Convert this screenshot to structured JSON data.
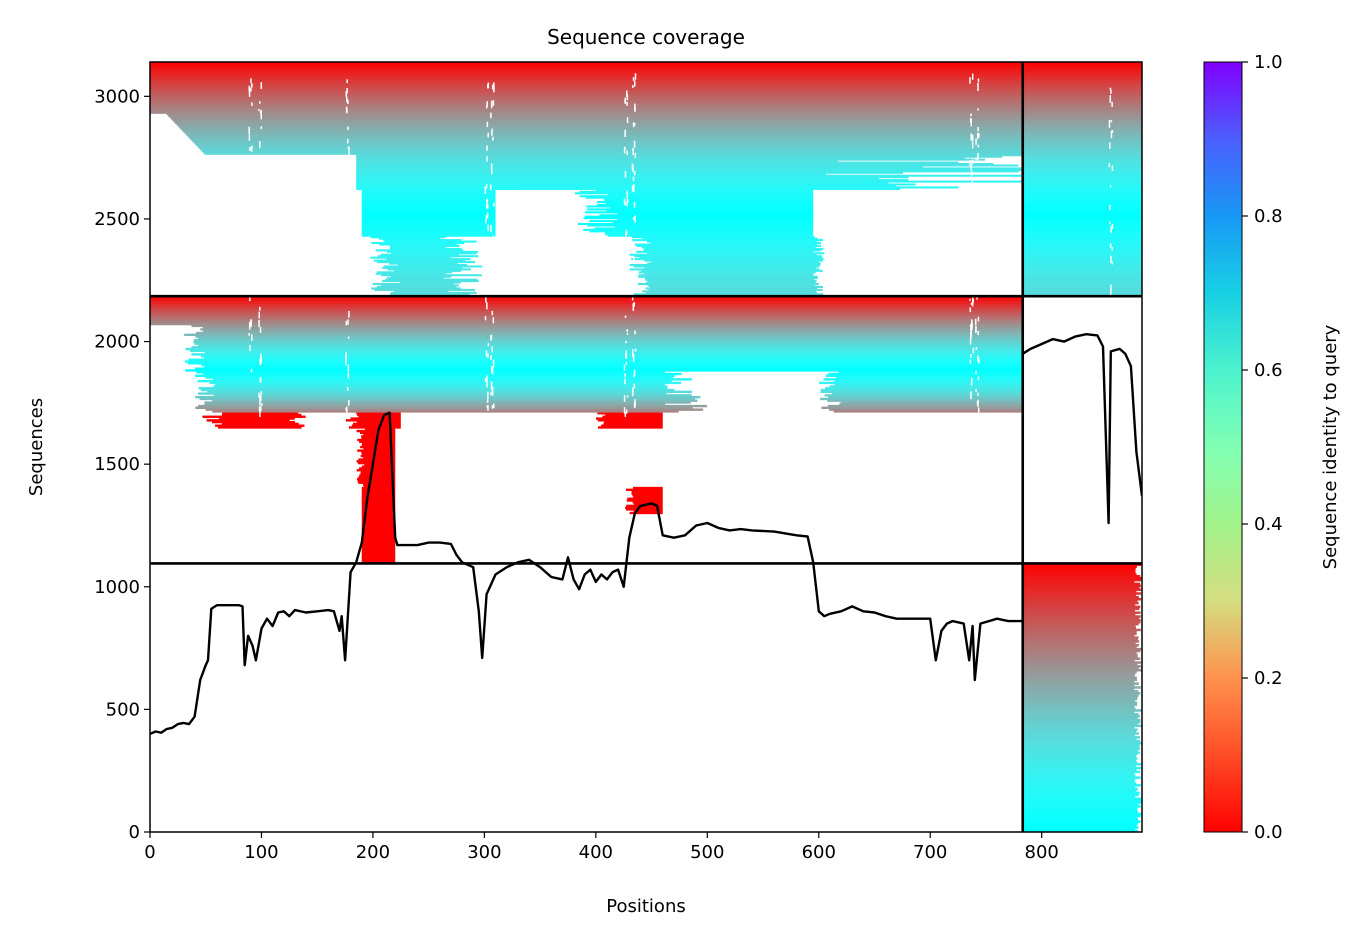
{
  "chart_data": {
    "type": "heatmap",
    "title": "Sequence coverage",
    "xlabel": "Positions",
    "ylabel": "Sequences",
    "xlim": [
      0,
      890
    ],
    "ylim": [
      0,
      3140
    ],
    "x_ticks": [
      0,
      100,
      200,
      300,
      400,
      500,
      600,
      700,
      800
    ],
    "y_ticks": [
      0,
      500,
      1000,
      1500,
      2000,
      2500,
      3000
    ],
    "grid": false,
    "colorbar": {
      "label": "Sequence identity to query",
      "range": [
        0,
        1
      ],
      "ticks": [
        "0.0",
        "0.2",
        "0.4",
        "0.6",
        "0.8",
        "1.0"
      ],
      "colormap": "rainbow"
    },
    "chain_boundaries": {
      "x": [
        783
      ],
      "y": [
        1095,
        2185
      ]
    },
    "blocks": [
      {
        "name": "block-1",
        "x_range": [
          783,
          890
        ],
        "y_range": [
          0,
          1095
        ]
      },
      {
        "name": "block-2",
        "x_range": [
          0,
          783
        ],
        "y_range": [
          1095,
          2185
        ]
      },
      {
        "name": "block-3",
        "x_range": [
          0,
          890
        ],
        "y_range": [
          2185,
          3140
        ]
      }
    ],
    "series": [
      {
        "type": "line",
        "color": "#000000",
        "points": [
          [
            0,
            400
          ],
          [
            5,
            410
          ],
          [
            10,
            405
          ],
          [
            15,
            420
          ],
          [
            20,
            425
          ],
          [
            25,
            440
          ],
          [
            30,
            445
          ],
          [
            35,
            440
          ],
          [
            40,
            470
          ],
          [
            45,
            620
          ],
          [
            50,
            680
          ],
          [
            52,
            700
          ],
          [
            55,
            910
          ],
          [
            60,
            925
          ],
          [
            70,
            925
          ],
          [
            80,
            925
          ],
          [
            83,
            920
          ],
          [
            85,
            680
          ],
          [
            88,
            800
          ],
          [
            92,
            760
          ],
          [
            95,
            700
          ],
          [
            100,
            830
          ],
          [
            105,
            870
          ],
          [
            110,
            840
          ],
          [
            115,
            895
          ],
          [
            120,
            900
          ],
          [
            125,
            880
          ],
          [
            130,
            905
          ],
          [
            140,
            895
          ],
          [
            150,
            900
          ],
          [
            160,
            905
          ],
          [
            165,
            900
          ],
          [
            170,
            820
          ],
          [
            172,
            880
          ],
          [
            175,
            700
          ],
          [
            180,
            1060
          ],
          [
            185,
            1100
          ],
          [
            190,
            1180
          ],
          [
            195,
            1360
          ],
          [
            200,
            1500
          ],
          [
            205,
            1640
          ],
          [
            210,
            1700
          ],
          [
            215,
            1710
          ],
          [
            220,
            1200
          ],
          [
            222,
            1170
          ],
          [
            230,
            1170
          ],
          [
            240,
            1170
          ],
          [
            250,
            1180
          ],
          [
            260,
            1180
          ],
          [
            270,
            1175
          ],
          [
            275,
            1130
          ],
          [
            280,
            1100
          ],
          [
            290,
            1080
          ],
          [
            295,
            900
          ],
          [
            298,
            710
          ],
          [
            302,
            970
          ],
          [
            305,
            1000
          ],
          [
            310,
            1050
          ],
          [
            320,
            1080
          ],
          [
            330,
            1100
          ],
          [
            340,
            1110
          ],
          [
            350,
            1080
          ],
          [
            360,
            1040
          ],
          [
            370,
            1030
          ],
          [
            375,
            1120
          ],
          [
            380,
            1030
          ],
          [
            385,
            990
          ],
          [
            390,
            1050
          ],
          [
            395,
            1070
          ],
          [
            400,
            1020
          ],
          [
            405,
            1050
          ],
          [
            410,
            1030
          ],
          [
            415,
            1060
          ],
          [
            420,
            1070
          ],
          [
            425,
            1000
          ],
          [
            430,
            1200
          ],
          [
            435,
            1300
          ],
          [
            440,
            1330
          ],
          [
            450,
            1340
          ],
          [
            455,
            1330
          ],
          [
            460,
            1210
          ],
          [
            470,
            1200
          ],
          [
            480,
            1210
          ],
          [
            490,
            1250
          ],
          [
            500,
            1260
          ],
          [
            510,
            1240
          ],
          [
            520,
            1230
          ],
          [
            530,
            1235
          ],
          [
            540,
            1230
          ],
          [
            560,
            1225
          ],
          [
            580,
            1210
          ],
          [
            590,
            1205
          ],
          [
            595,
            1100
          ],
          [
            600,
            900
          ],
          [
            605,
            880
          ],
          [
            610,
            890
          ],
          [
            620,
            900
          ],
          [
            630,
            920
          ],
          [
            640,
            900
          ],
          [
            650,
            895
          ],
          [
            660,
            880
          ],
          [
            670,
            870
          ],
          [
            690,
            870
          ],
          [
            700,
            870
          ],
          [
            705,
            700
          ],
          [
            710,
            820
          ],
          [
            715,
            850
          ],
          [
            720,
            860
          ],
          [
            730,
            850
          ],
          [
            735,
            700
          ],
          [
            738,
            840
          ],
          [
            740,
            620
          ],
          [
            745,
            850
          ],
          [
            760,
            870
          ],
          [
            770,
            860
          ],
          [
            778,
            860
          ],
          [
            783,
            860
          ],
          [
            783,
            1950
          ],
          [
            790,
            1970
          ],
          [
            800,
            1990
          ],
          [
            810,
            2010
          ],
          [
            820,
            2000
          ],
          [
            830,
            2020
          ],
          [
            840,
            2030
          ],
          [
            850,
            2025
          ],
          [
            855,
            1980
          ],
          [
            860,
            1260
          ],
          [
            862,
            1960
          ],
          [
            870,
            1970
          ],
          [
            875,
            1950
          ],
          [
            880,
            1900
          ],
          [
            885,
            1550
          ],
          [
            890,
            1370
          ]
        ]
      }
    ]
  }
}
